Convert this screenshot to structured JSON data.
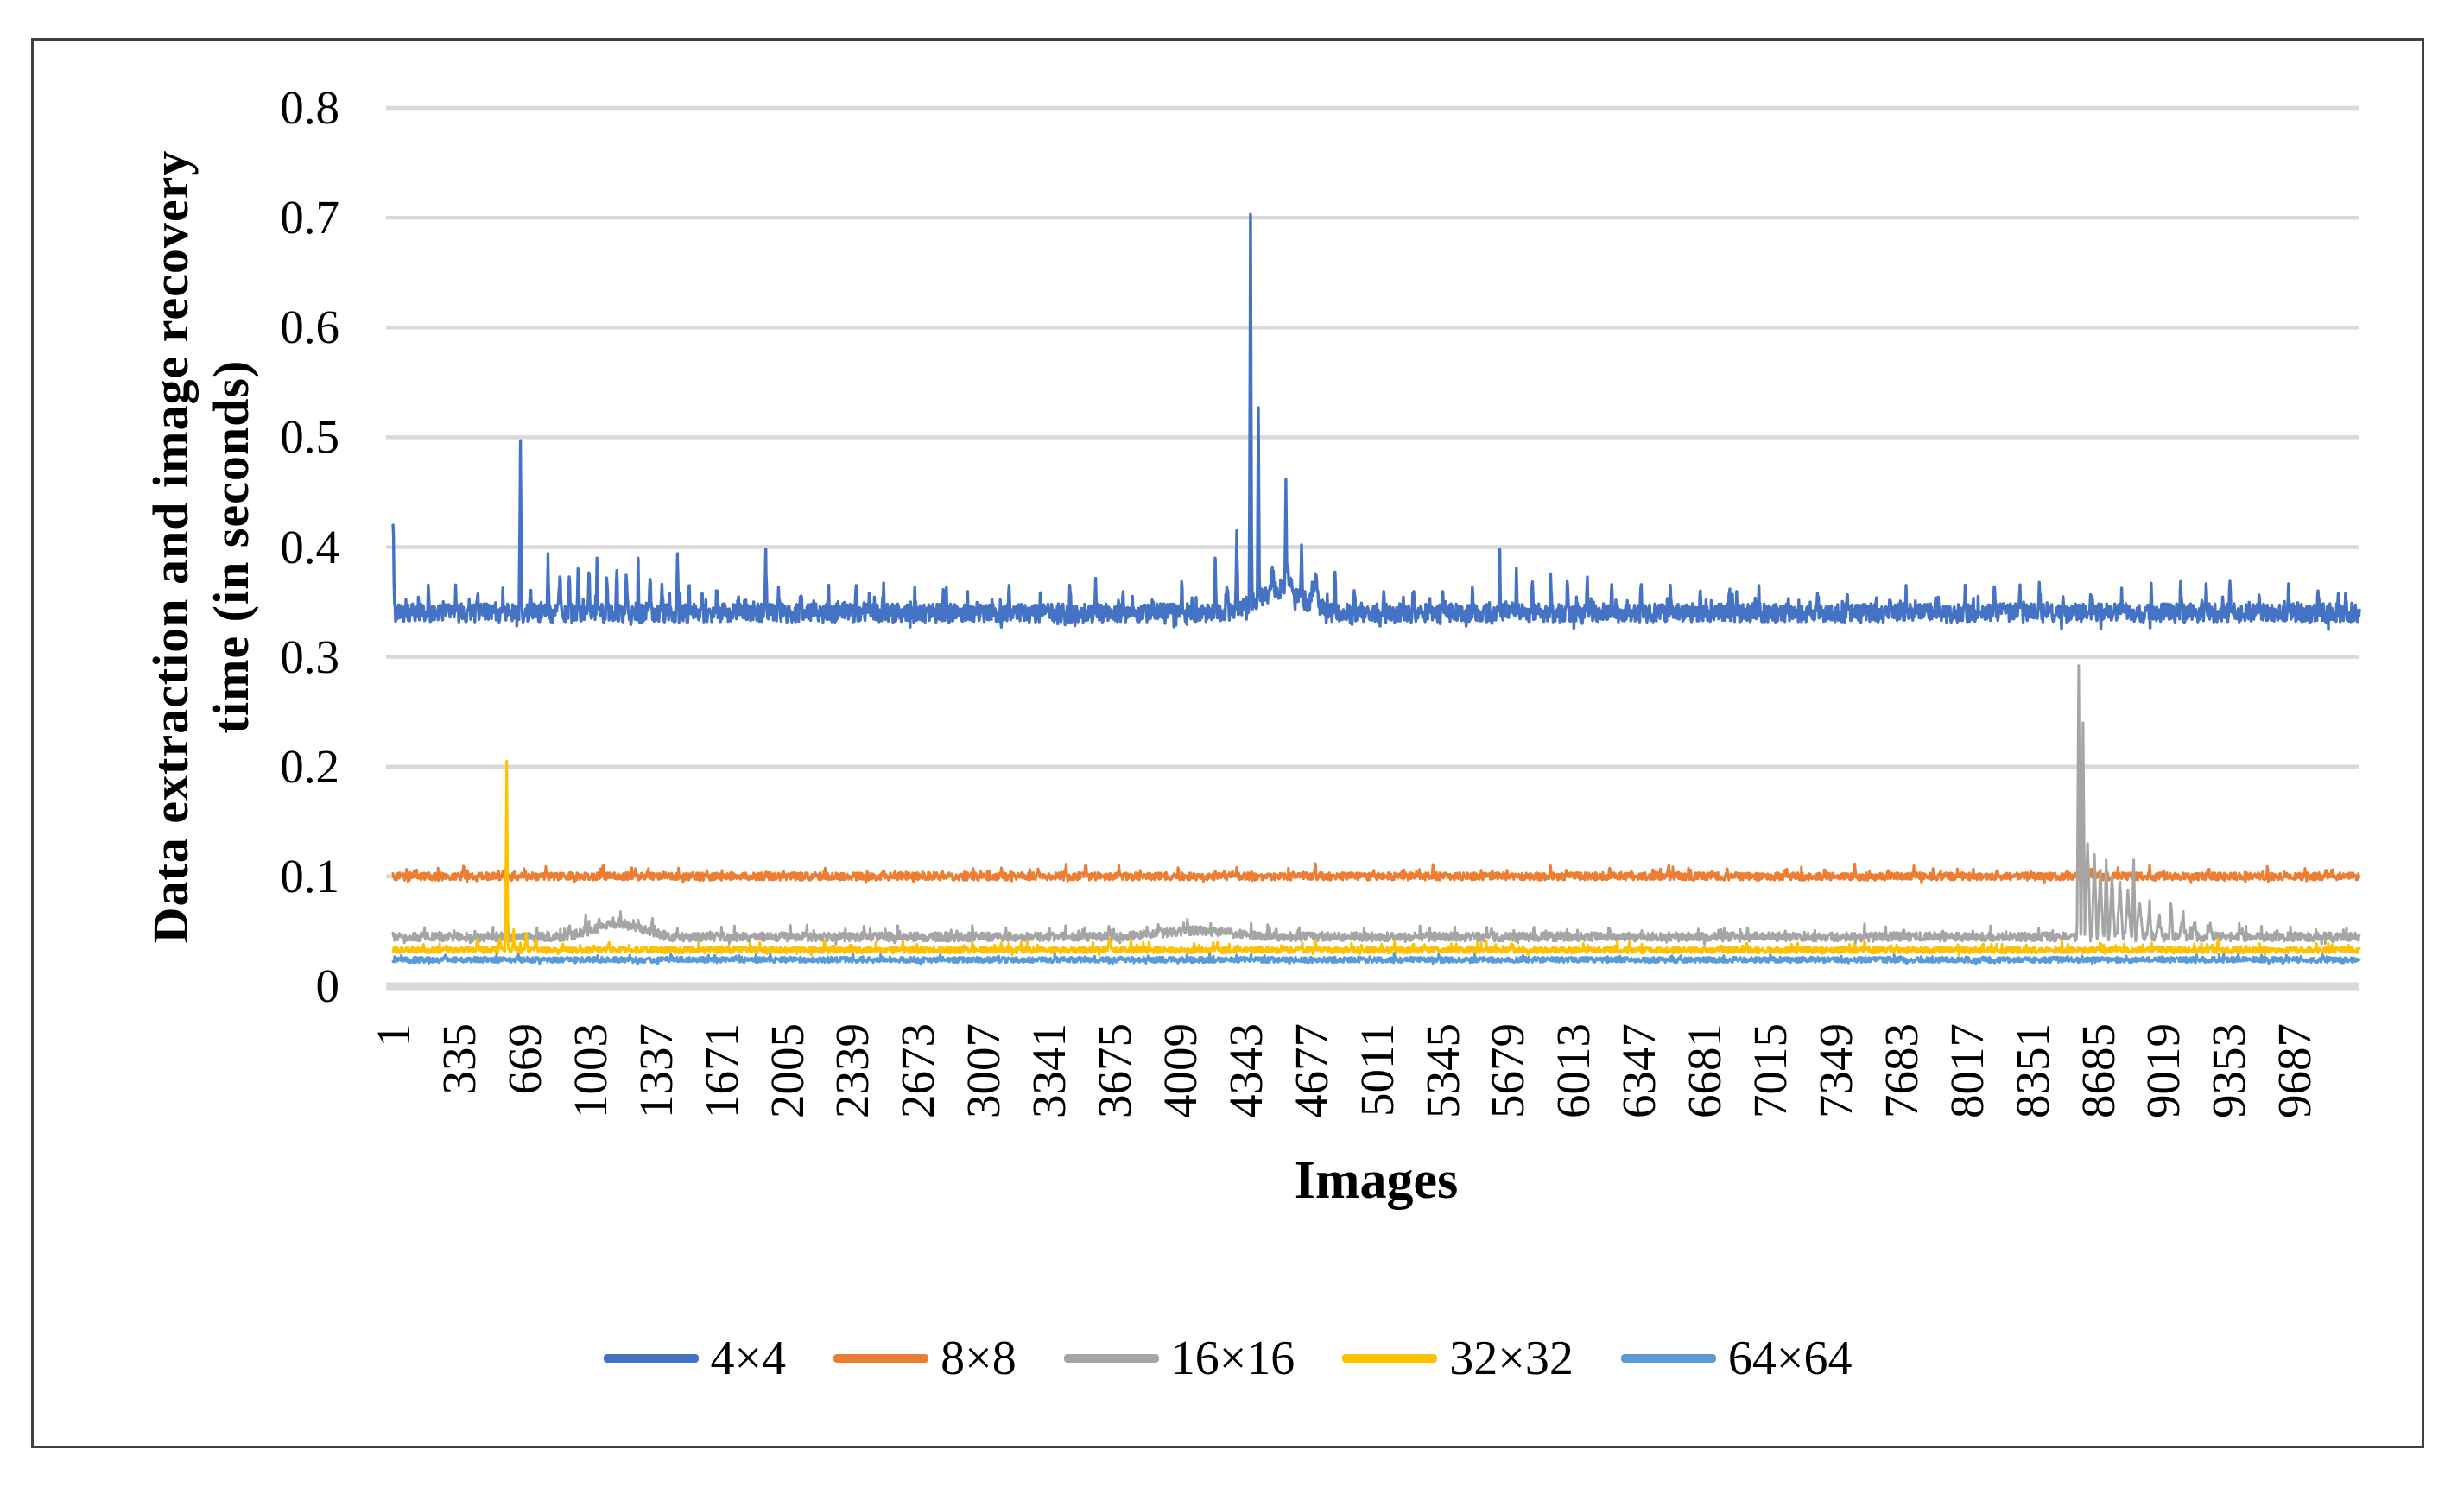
{
  "chart_data": {
    "type": "line",
    "title": "",
    "xlabel": "Images",
    "ylabel": "Data extraction and image recovery time (in seconds)",
    "ylabel_lines": [
      "Data extraction and image recovery",
      "time (in seconds)"
    ],
    "x_ticks": [
      "1",
      "335",
      "669",
      "1003",
      "1337",
      "1671",
      "2005",
      "2339",
      "2673",
      "3007",
      "3341",
      "3675",
      "4009",
      "4343",
      "4677",
      "5011",
      "5345",
      "5679",
      "6013",
      "6347",
      "6681",
      "7015",
      "7349",
      "7683",
      "8017",
      "8351",
      "8685",
      "9019",
      "9353",
      "9687"
    ],
    "n_images": 10020,
    "y_ticks": [
      {
        "label": "0",
        "v": 0
      },
      {
        "label": "0.1",
        "v": 0.1
      },
      {
        "label": "0.2",
        "v": 0.2
      },
      {
        "label": "0.3",
        "v": 0.3
      },
      {
        "label": "0.4",
        "v": 0.4
      },
      {
        "label": "0.5",
        "v": 0.5
      },
      {
        "label": "0.6",
        "v": 0.6
      },
      {
        "label": "0.7",
        "v": 0.7
      },
      {
        "label": "0.8",
        "v": 0.8
      }
    ],
    "ylim": [
      0,
      0.8
    ],
    "grid": "horizontal",
    "legend_position": "bottom",
    "colors": {
      "grid": "#D9D9D9",
      "axis": "#D9D9D9",
      "border": "#404040",
      "text": "#000000"
    },
    "series": [
      {
        "name": "4×4",
        "color": "#4472C4",
        "baseline": 0.34,
        "noise": 0.0085,
        "micro": 0.013,
        "features": [
          [
            1,
            0.42,
            8
          ],
          [
            180,
            0.362,
            6
          ],
          [
            320,
            0.358,
            6
          ],
          [
            430,
            0.364,
            6
          ],
          [
            560,
            0.358,
            6
          ],
          [
            650,
            0.497,
            7
          ],
          [
            700,
            0.364,
            6
          ],
          [
            790,
            0.394,
            6
          ],
          [
            850,
            0.37,
            8
          ],
          [
            900,
            0.383,
            6
          ],
          [
            945,
            0.374,
            6
          ],
          [
            1000,
            0.378,
            8
          ],
          [
            1040,
            0.39,
            5
          ],
          [
            1090,
            0.376,
            6
          ],
          [
            1140,
            0.385,
            6
          ],
          [
            1190,
            0.374,
            8
          ],
          [
            1250,
            0.388,
            5
          ],
          [
            1310,
            0.372,
            8
          ],
          [
            1370,
            0.364,
            8
          ],
          [
            1450,
            0.394,
            6
          ],
          [
            1510,
            0.371,
            6
          ],
          [
            1575,
            0.364,
            8
          ],
          [
            1650,
            0.369,
            6
          ],
          [
            1760,
            0.358,
            6
          ],
          [
            1900,
            0.398,
            6
          ],
          [
            1965,
            0.369,
            6
          ],
          [
            2080,
            0.361,
            6
          ],
          [
            2220,
            0.364,
            6
          ],
          [
            2360,
            0.358,
            6
          ],
          [
            2500,
            0.363,
            6
          ],
          [
            2660,
            0.358,
            6
          ],
          [
            2820,
            0.362,
            6
          ],
          [
            2980,
            0.358,
            6
          ],
          [
            3140,
            0.363,
            6
          ],
          [
            3300,
            0.358,
            6
          ],
          [
            3450,
            0.364,
            6
          ],
          [
            3580,
            0.367,
            6
          ],
          [
            3720,
            0.361,
            6
          ],
          [
            3870,
            0.358,
            6
          ],
          [
            4020,
            0.364,
            6
          ],
          [
            4190,
            0.39,
            6
          ],
          [
            4250,
            0.372,
            10
          ],
          [
            4300,
            0.415,
            6
          ],
          [
            4370,
            0.703,
            7
          ],
          [
            4410,
            0.527,
            6
          ],
          [
            4480,
            0.376,
            40
          ],
          [
            4550,
            0.462,
            6
          ],
          [
            4560,
            0.378,
            60
          ],
          [
            4630,
            0.402,
            8
          ],
          [
            4520,
            0.362,
            260
          ],
          [
            4700,
            0.375,
            30
          ],
          [
            4800,
            0.372,
            8
          ],
          [
            4900,
            0.364,
            6
          ],
          [
            5050,
            0.361,
            6
          ],
          [
            5200,
            0.364,
            6
          ],
          [
            5350,
            0.367,
            6
          ],
          [
            5500,
            0.361,
            6
          ],
          [
            5640,
            0.392,
            6
          ],
          [
            5725,
            0.377,
            6
          ],
          [
            5805,
            0.373,
            6
          ],
          [
            5900,
            0.379,
            6
          ],
          [
            5985,
            0.371,
            6
          ],
          [
            6085,
            0.377,
            6
          ],
          [
            6210,
            0.367,
            6
          ],
          [
            6360,
            0.363,
            6
          ],
          [
            6510,
            0.367,
            6
          ],
          [
            6660,
            0.361,
            6
          ],
          [
            6810,
            0.364,
            6
          ],
          [
            6960,
            0.359,
            6
          ],
          [
            7110,
            0.363,
            6
          ],
          [
            7260,
            0.359,
            6
          ],
          [
            7410,
            0.362,
            6
          ],
          [
            7560,
            0.359,
            6
          ],
          [
            7710,
            0.363,
            6
          ],
          [
            7860,
            0.359,
            6
          ],
          [
            8010,
            0.362,
            6
          ],
          [
            8160,
            0.367,
            6
          ],
          [
            8290,
            0.371,
            6
          ],
          [
            8390,
            0.367,
            6
          ],
          [
            8510,
            0.364,
            6
          ],
          [
            8660,
            0.361,
            6
          ],
          [
            8810,
            0.359,
            6
          ],
          [
            8960,
            0.362,
            6
          ],
          [
            9110,
            0.367,
            6
          ],
          [
            9240,
            0.363,
            6
          ],
          [
            9360,
            0.368,
            6
          ],
          [
            9510,
            0.361,
            6
          ],
          [
            9660,
            0.364,
            6
          ],
          [
            9810,
            0.361,
            6
          ],
          [
            9950,
            0.359,
            6
          ]
        ]
      },
      {
        "name": "8×8",
        "color": "#ED7D31",
        "baseline": 0.1,
        "noise": 0.0035,
        "micro": 0.006,
        "features": [
          [
            360,
            0.112
          ],
          [
            560,
            0.107
          ],
          [
            780,
            0.108
          ],
          [
            1070,
            0.112
          ],
          [
            1300,
            0.107
          ],
          [
            1600,
            0.108
          ],
          [
            1900,
            0.106
          ],
          [
            2200,
            0.108
          ],
          [
            2500,
            0.106
          ],
          [
            2800,
            0.107
          ],
          [
            3100,
            0.108
          ],
          [
            3430,
            0.112
          ],
          [
            3530,
            0.115
          ],
          [
            3700,
            0.109
          ],
          [
            4000,
            0.107
          ],
          [
            4300,
            0.108
          ],
          [
            4700,
            0.112
          ],
          [
            5000,
            0.107
          ],
          [
            5300,
            0.108
          ],
          [
            5600,
            0.106
          ],
          [
            5900,
            0.108
          ],
          [
            6200,
            0.107
          ],
          [
            6500,
            0.111
          ],
          [
            6800,
            0.108
          ],
          [
            7100,
            0.107
          ],
          [
            7450,
            0.112
          ],
          [
            7750,
            0.107
          ],
          [
            8050,
            0.108
          ],
          [
            8350,
            0.107
          ],
          [
            8650,
            0.108
          ],
          [
            8950,
            0.11
          ],
          [
            9250,
            0.107
          ],
          [
            9550,
            0.108
          ],
          [
            9850,
            0.107
          ]
        ]
      },
      {
        "name": "16×16",
        "color": "#A5A5A5",
        "baseline": 0.045,
        "noise": 0.004,
        "micro": 0.009,
        "features": [
          [
            900,
            0.057,
            10
          ],
          [
            980,
            0.06,
            8
          ],
          [
            1050,
            0.062,
            10
          ],
          [
            1150,
            0.058,
            260
          ],
          [
            1160,
            0.065,
            8
          ],
          [
            1250,
            0.063,
            10
          ],
          [
            1320,
            0.06,
            10
          ],
          [
            2400,
            0.052,
            8
          ],
          [
            3000,
            0.05,
            8
          ],
          [
            3650,
            0.055,
            8
          ],
          [
            3900,
            0.056,
            8
          ],
          [
            4050,
            0.054,
            8
          ],
          [
            4100,
            0.051,
            400
          ],
          [
            4250,
            0.053,
            8
          ],
          [
            4500,
            0.052,
            8
          ],
          [
            5000,
            0.05,
            8
          ],
          [
            5600,
            0.054,
            8
          ],
          [
            6200,
            0.05,
            8
          ],
          [
            6900,
            0.052,
            8
          ],
          [
            7700,
            0.051,
            8
          ],
          [
            8590,
            0.292,
            9
          ],
          [
            8612,
            0.24,
            9
          ],
          [
            8635,
            0.13,
            14
          ],
          [
            8670,
            0.12,
            12
          ],
          [
            8700,
            0.105,
            14
          ],
          [
            8730,
            0.115,
            10
          ],
          [
            8760,
            0.1,
            14
          ],
          [
            8800,
            0.095,
            14
          ],
          [
            8840,
            0.085,
            16
          ],
          [
            8870,
            0.115,
            8
          ],
          [
            8900,
            0.075,
            16
          ],
          [
            8950,
            0.07,
            14
          ],
          [
            9000,
            0.065,
            16
          ],
          [
            9060,
            0.078,
            10
          ],
          [
            9120,
            0.06,
            16
          ],
          [
            9180,
            0.058,
            14
          ],
          [
            9260,
            0.055,
            12
          ],
          [
            9420,
            0.052,
            10
          ],
          [
            9600,
            0.051,
            8
          ],
          [
            9800,
            0.05,
            8
          ]
        ]
      },
      {
        "name": "32×32",
        "color": "#FFC000",
        "baseline": 0.033,
        "noise": 0.0028,
        "micro": 0.006,
        "features": [
          [
            430,
            0.045,
            8
          ],
          [
            545,
            0.042,
            8
          ],
          [
            580,
            0.205,
            7
          ],
          [
            615,
            0.048,
            8
          ],
          [
            680,
            0.05,
            8
          ],
          [
            730,
            0.044,
            8
          ],
          [
            1100,
            0.04
          ],
          [
            1600,
            0.038
          ],
          [
            2200,
            0.04
          ],
          [
            2600,
            0.042
          ],
          [
            3100,
            0.039
          ],
          [
            3650,
            0.045
          ],
          [
            3760,
            0.042
          ],
          [
            4200,
            0.04
          ],
          [
            4700,
            0.043
          ],
          [
            5200,
            0.039
          ],
          [
            5700,
            0.041
          ],
          [
            6300,
            0.039
          ],
          [
            6900,
            0.04
          ],
          [
            7500,
            0.039
          ],
          [
            8100,
            0.041
          ],
          [
            8700,
            0.04
          ],
          [
            9300,
            0.041
          ],
          [
            9800,
            0.039
          ]
        ]
      },
      {
        "name": "64×64",
        "color": "#5B9BD5",
        "baseline": 0.024,
        "noise": 0.0025,
        "micro": 0.004,
        "features": []
      }
    ]
  }
}
